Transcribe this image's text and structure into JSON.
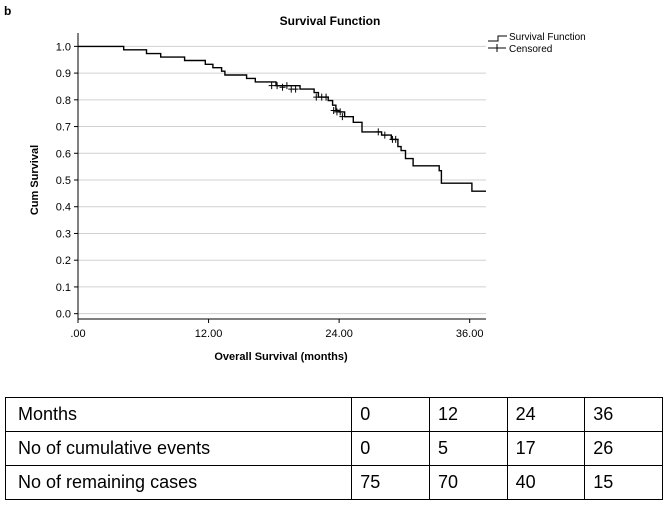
{
  "panel_label": "b",
  "chart_data": {
    "type": "line",
    "title": "Survival Function",
    "xlabel": "Overall Survival (months)",
    "ylabel": "Cum Survival",
    "xlim": [
      0,
      37.5
    ],
    "ylim": [
      -0.02,
      1.05
    ],
    "x_ticks": [
      0,
      12,
      24,
      36
    ],
    "x_tick_labels": [
      ".00",
      "12.00",
      "24.00",
      "36.00"
    ],
    "y_ticks": [
      0.0,
      0.1,
      0.2,
      0.3,
      0.4,
      0.5,
      0.6,
      0.7,
      0.8,
      0.9,
      1.0
    ],
    "y_tick_labels": [
      "0.0",
      "0.1",
      "0.2",
      "0.3",
      "0.4",
      "0.5",
      "0.6",
      "0.7",
      "0.8",
      "0.9",
      "1.0"
    ],
    "grid": "horizontal",
    "legend_position": "top-right",
    "series": [
      {
        "name": "Survival Function",
        "style": "step",
        "points": [
          [
            0,
            1.0
          ],
          [
            4.2,
            0.987
          ],
          [
            6.3,
            0.973
          ],
          [
            7.6,
            0.96
          ],
          [
            9.8,
            0.947
          ],
          [
            11.7,
            0.933
          ],
          [
            12.4,
            0.92
          ],
          [
            13.2,
            0.907
          ],
          [
            13.5,
            0.893
          ],
          [
            15.5,
            0.88
          ],
          [
            16.3,
            0.867
          ],
          [
            18.2,
            0.853
          ],
          [
            20.4,
            0.84
          ],
          [
            21.7,
            0.827
          ],
          [
            22.1,
            0.81
          ],
          [
            23.0,
            0.797
          ],
          [
            23.4,
            0.78
          ],
          [
            23.7,
            0.76
          ],
          [
            24.0,
            0.755
          ],
          [
            24.5,
            0.737
          ],
          [
            25.3,
            0.716
          ],
          [
            26.1,
            0.68
          ],
          [
            27.9,
            0.668
          ],
          [
            28.8,
            0.652
          ],
          [
            29.4,
            0.625
          ],
          [
            29.7,
            0.61
          ],
          [
            30.1,
            0.58
          ],
          [
            30.8,
            0.553
          ],
          [
            33.2,
            0.535
          ],
          [
            33.4,
            0.488
          ],
          [
            36.2,
            0.458
          ],
          [
            37.5,
            0.458
          ]
        ]
      },
      {
        "name": "Censored",
        "style": "marker-plus",
        "points": [
          [
            17.8,
            0.853
          ],
          [
            18.3,
            0.853
          ],
          [
            18.8,
            0.847
          ],
          [
            19.2,
            0.853
          ],
          [
            19.6,
            0.84
          ],
          [
            20.0,
            0.84
          ],
          [
            21.9,
            0.81
          ],
          [
            22.4,
            0.81
          ],
          [
            22.8,
            0.81
          ],
          [
            23.5,
            0.76
          ],
          [
            23.8,
            0.755
          ],
          [
            24.1,
            0.755
          ],
          [
            24.3,
            0.737
          ],
          [
            27.6,
            0.68
          ],
          [
            28.2,
            0.668
          ],
          [
            28.9,
            0.652
          ],
          [
            29.2,
            0.652
          ]
        ]
      }
    ]
  },
  "risk_table": {
    "rows": [
      {
        "label": "Months",
        "values": [
          "0",
          "12",
          "24",
          "36"
        ]
      },
      {
        "label": "No of cumulative events",
        "values": [
          "0",
          "5",
          "17",
          "26"
        ]
      },
      {
        "label": "No of remaining cases",
        "values": [
          "75",
          "70",
          "40",
          "15"
        ]
      }
    ]
  }
}
